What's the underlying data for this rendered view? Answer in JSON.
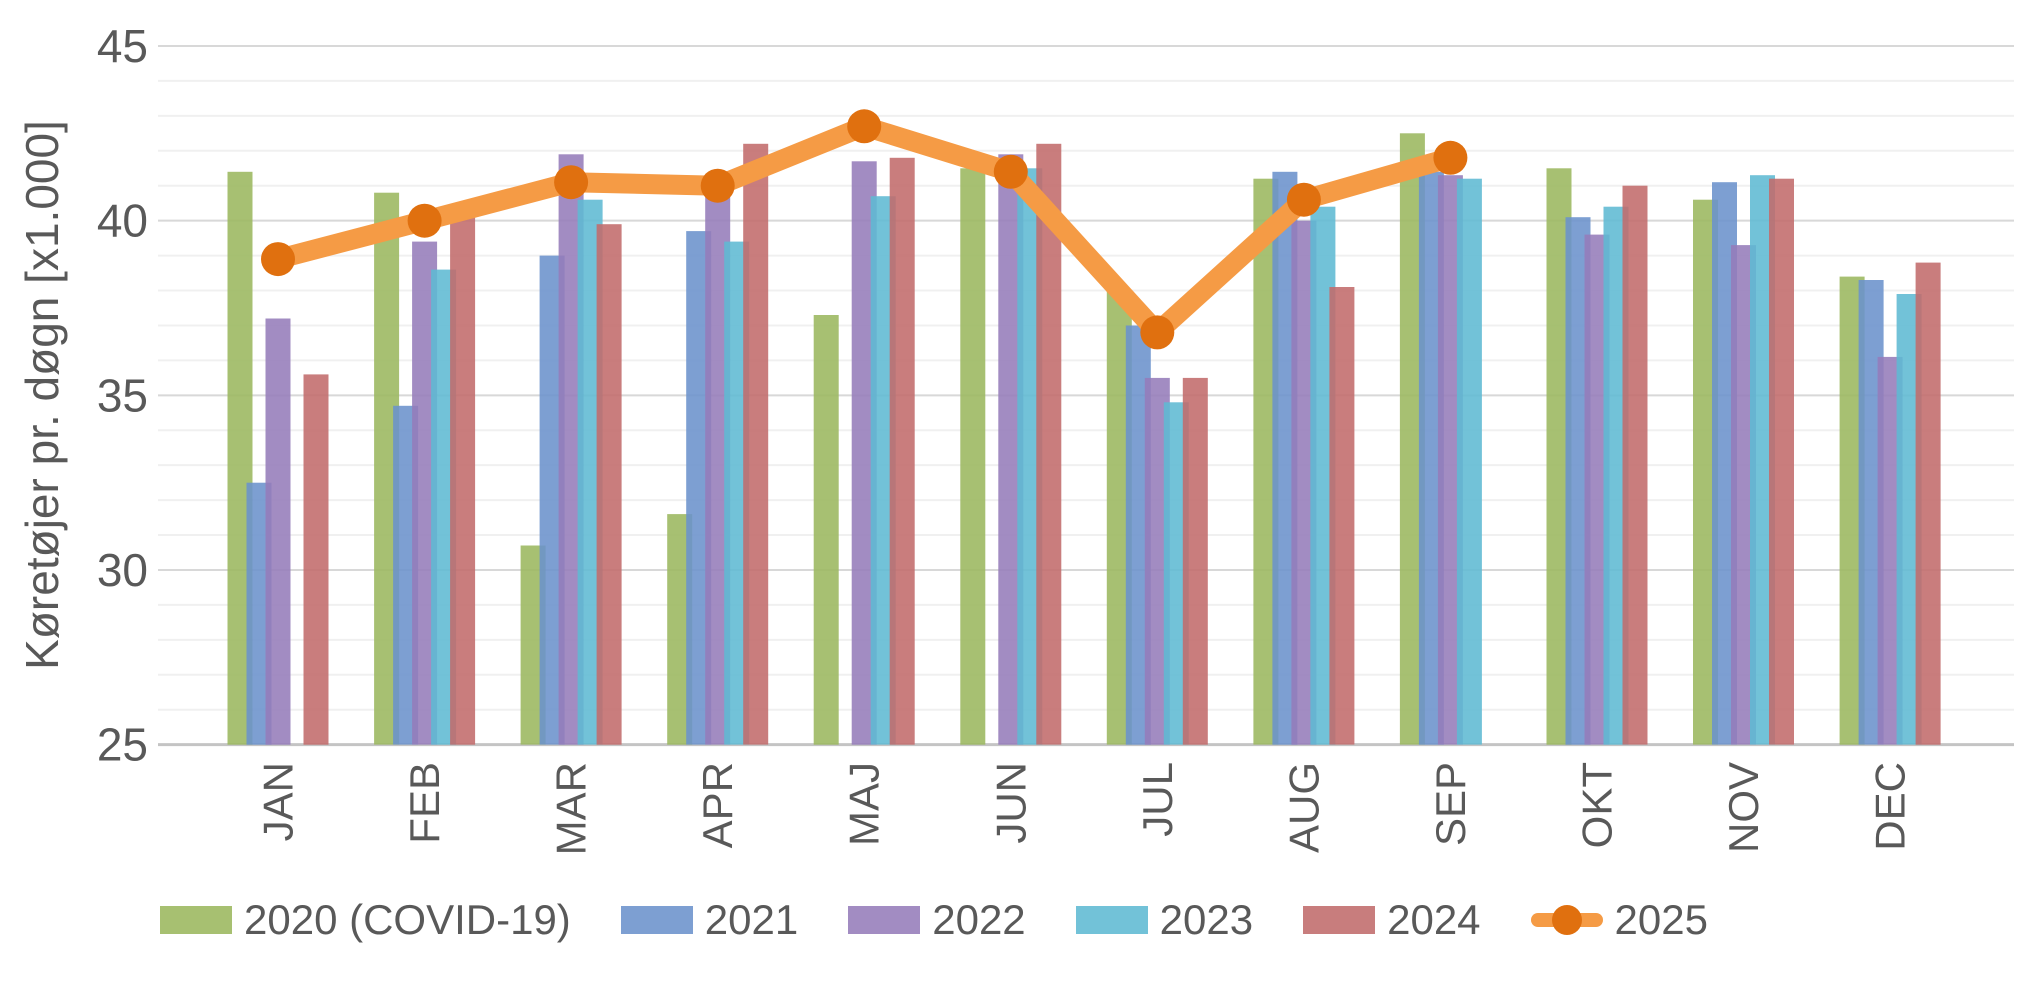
{
  "chart_data": {
    "type": "bar",
    "title": "",
    "ylabel": "Køretøjer pr. døgn [x1.000]",
    "xlabel": "",
    "ylim": [
      25,
      45
    ],
    "ytick_major": [
      25,
      30,
      35,
      40,
      45
    ],
    "ytick_minor_step": 1,
    "grid": "horizontal",
    "legend_position": "bottom",
    "categories": [
      "JAN",
      "FEB",
      "MAR",
      "APR",
      "MAJ",
      "JUN",
      "JUL",
      "AUG",
      "SEP",
      "OKT",
      "NOV",
      "DEC"
    ],
    "series": [
      {
        "name": "2020 (COVID-19)",
        "type": "bar",
        "color": "#a7c071",
        "values": [
          41.4,
          40.8,
          30.7,
          31.6,
          37.3,
          41.5,
          38.0,
          41.2,
          42.5,
          41.5,
          40.6,
          38.4
        ]
      },
      {
        "name": "2021",
        "type": "bar",
        "color": "#7d9fd2",
        "values": [
          32.5,
          34.7,
          39.0,
          39.7,
          null,
          null,
          37.0,
          41.4,
          41.4,
          40.1,
          41.1,
          38.3
        ]
      },
      {
        "name": "2022",
        "type": "bar",
        "color": "#a28cc2",
        "values": [
          37.2,
          39.4,
          41.9,
          40.7,
          41.7,
          41.9,
          35.5,
          40.0,
          41.3,
          39.6,
          39.3,
          36.1
        ]
      },
      {
        "name": "2023",
        "type": "bar",
        "color": "#72c2d8",
        "values": [
          null,
          38.6,
          40.6,
          39.4,
          40.7,
          41.5,
          34.8,
          40.4,
          41.2,
          40.4,
          41.3,
          37.9
        ]
      },
      {
        "name": "2024",
        "type": "bar",
        "color": "#c87d7d",
        "values": [
          35.6,
          40.1,
          39.9,
          42.2,
          41.8,
          42.2,
          35.5,
          38.1,
          null,
          41.0,
          41.2,
          38.8
        ]
      },
      {
        "name": "2025",
        "type": "line",
        "color": "#f59b45",
        "marker_color": "#e0700f",
        "values": [
          38.9,
          40.0,
          41.1,
          41.0,
          42.7,
          41.4,
          36.8,
          40.6,
          41.8,
          null,
          null,
          null
        ]
      }
    ],
    "colors": {
      "axis_text": "#595959",
      "gridline_minor": "#f0f0f0",
      "gridline_major": "#d8d8d8",
      "axis_line": "#c4c4c4"
    }
  }
}
